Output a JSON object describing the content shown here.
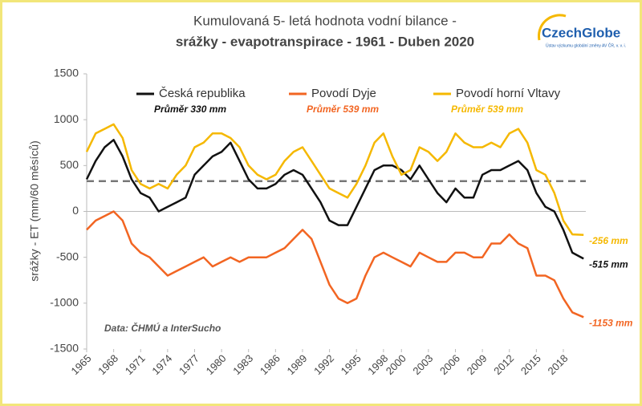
{
  "chart_data": {
    "type": "line",
    "title": "Kumulovaná 5- letá hodnota vodní bilance -",
    "subtitle": "srážky - evapotranspirace - 1961 - Duben 2020",
    "y_label": "srážky - ET (mm/60 měsíců)",
    "source": "Data: ČHMÚ a InterSucho",
    "logo": "CzechGlobe",
    "logo_caption": "Ústav výzkumu globální změny AV ČR, v. v. i.",
    "reference_line": 330,
    "x": [
      1965,
      1966,
      1967,
      1968,
      1969,
      1970,
      1971,
      1972,
      1973,
      1974,
      1975,
      1976,
      1977,
      1978,
      1979,
      1980,
      1981,
      1982,
      1983,
      1984,
      1985,
      1986,
      1987,
      1988,
      1989,
      1990,
      1991,
      1992,
      1993,
      1994,
      1995,
      1996,
      1997,
      1998,
      1999,
      2000,
      2001,
      2002,
      2003,
      2004,
      2005,
      2006,
      2007,
      2008,
      2009,
      2010,
      2011,
      2012,
      2013,
      2014,
      2015,
      2016,
      2017,
      2018,
      2019,
      2020.25
    ],
    "series": [
      {
        "name": "Česká republika",
        "color": "#111111",
        "mean_label": "Průměr 330 mm",
        "end_label": "-515 mm",
        "values": [
          350,
          550,
          700,
          780,
          600,
          350,
          200,
          150,
          0,
          50,
          100,
          150,
          400,
          500,
          600,
          650,
          750,
          550,
          350,
          250,
          250,
          300,
          400,
          450,
          400,
          250,
          100,
          -100,
          -150,
          -150,
          50,
          250,
          450,
          500,
          500,
          450,
          350,
          500,
          350,
          200,
          100,
          250,
          150,
          150,
          400,
          450,
          450,
          500,
          550,
          450,
          200,
          50,
          0,
          -200,
          -450,
          -515
        ]
      },
      {
        "name": "Povodí Dyje",
        "color": "#f26522",
        "mean_label": "Průměr 539 mm",
        "end_label": "-1153 mm",
        "values": [
          -200,
          -100,
          -50,
          0,
          -100,
          -350,
          -450,
          -500,
          -600,
          -700,
          -650,
          -600,
          -550,
          -500,
          -600,
          -550,
          -500,
          -550,
          -500,
          -500,
          -500,
          -450,
          -400,
          -300,
          -200,
          -300,
          -550,
          -800,
          -950,
          -1000,
          -950,
          -700,
          -500,
          -450,
          -500,
          -550,
          -600,
          -450,
          -500,
          -550,
          -550,
          -450,
          -450,
          -500,
          -500,
          -350,
          -350,
          -250,
          -350,
          -400,
          -700,
          -700,
          -750,
          -950,
          -1100,
          -1153
        ]
      },
      {
        "name": "Povodí horní Vltavy",
        "color": "#f5b800",
        "mean_label": "Průměr 539 mm",
        "end_label": "-256 mm",
        "values": [
          650,
          850,
          900,
          950,
          800,
          450,
          300,
          250,
          300,
          250,
          400,
          500,
          700,
          750,
          850,
          850,
          800,
          700,
          500,
          400,
          350,
          400,
          550,
          650,
          700,
          550,
          400,
          250,
          200,
          150,
          300,
          500,
          750,
          850,
          600,
          400,
          450,
          700,
          650,
          550,
          650,
          850,
          750,
          700,
          700,
          750,
          700,
          850,
          900,
          750,
          450,
          400,
          200,
          -100,
          -250,
          -256
        ]
      }
    ],
    "xlim": [
      1965,
      2020.5
    ],
    "xticks": [
      1965,
      1968,
      1971,
      1974,
      1977,
      1980,
      1983,
      1986,
      1989,
      1992,
      1995,
      1998,
      2000,
      2003,
      2006,
      2009,
      2012,
      2015,
      2018
    ],
    "ylim": [
      -1500,
      1500
    ],
    "yticks": [
      -1500,
      -1000,
      -500,
      0,
      500,
      1000,
      1500
    ],
    "grid": false
  }
}
